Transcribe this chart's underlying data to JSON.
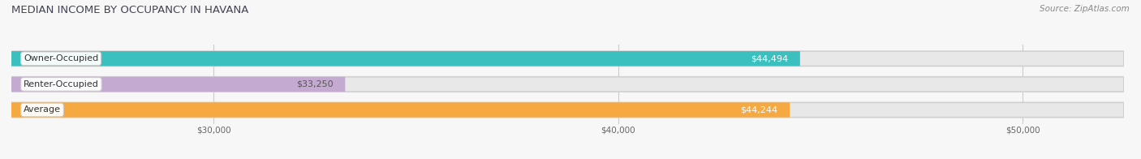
{
  "title": "MEDIAN INCOME BY OCCUPANCY IN HAVANA",
  "source": "Source: ZipAtlas.com",
  "categories": [
    "Owner-Occupied",
    "Renter-Occupied",
    "Average"
  ],
  "values": [
    44494,
    33250,
    44244
  ],
  "bar_colors": [
    "#3bbfbf",
    "#c4aad0",
    "#f5a940"
  ],
  "label_colors": [
    "#ffffff",
    "#555555",
    "#ffffff"
  ],
  "value_labels": [
    "$44,494",
    "$33,250",
    "$44,244"
  ],
  "xlim_min": 25000,
  "xlim_max": 52500,
  "xtick_values": [
    30000,
    40000,
    50000
  ],
  "xtick_labels": [
    "$30,000",
    "$40,000",
    "$50,000"
  ],
  "bar_height": 0.58,
  "background_color": "#f7f7f7",
  "title_fontsize": 9.5,
  "source_fontsize": 7.5,
  "label_fontsize": 8,
  "tick_fontsize": 7.5
}
